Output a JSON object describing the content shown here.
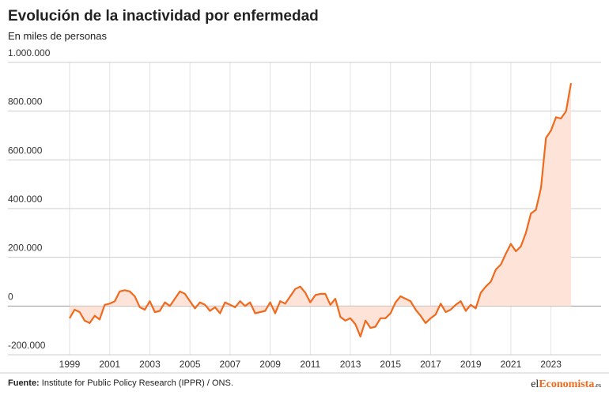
{
  "chart_data": {
    "type": "area-line",
    "title": "Evolución de la inactividad por enfermedad",
    "subtitle": "En miles de personas",
    "color": "#f06a1e",
    "fill_color": "#fde3d8",
    "grid": true,
    "xlim": [
      1999,
      2024
    ],
    "xticks": [
      1999,
      2001,
      2003,
      2005,
      2007,
      2009,
      2011,
      2013,
      2015,
      2017,
      2019,
      2021,
      2023
    ],
    "ylim": [
      -200000,
      1000000
    ],
    "yticks": [
      {
        "value": -200000,
        "label": "-200.000"
      },
      0,
      {
        "value": 200000,
        "label": "200.000"
      },
      {
        "value": 400000,
        "label": "400.000"
      },
      {
        "value": 600000,
        "label": "600.000"
      },
      {
        "value": 800000,
        "label": "800.000"
      },
      {
        "value": 1000000,
        "label": "1.000.000"
      }
    ],
    "x": [
      1999,
      1999.25,
      1999.5,
      1999.75,
      2000,
      2000.25,
      2000.5,
      2000.75,
      2001,
      2001.25,
      2001.5,
      2001.75,
      2002,
      2002.25,
      2002.5,
      2002.75,
      2003,
      2003.25,
      2003.5,
      2003.75,
      2004,
      2004.25,
      2004.5,
      2004.75,
      2005,
      2005.25,
      2005.5,
      2005.75,
      2006,
      2006.25,
      2006.5,
      2006.75,
      2007,
      2007.25,
      2007.5,
      2007.75,
      2008,
      2008.25,
      2008.5,
      2008.75,
      2009,
      2009.25,
      2009.5,
      2009.75,
      2010,
      2010.25,
      2010.5,
      2010.75,
      2011,
      2011.25,
      2011.5,
      2011.75,
      2012,
      2012.25,
      2012.5,
      2012.75,
      2013,
      2013.25,
      2013.5,
      2013.75,
      2014,
      2014.25,
      2014.5,
      2014.75,
      2015,
      2015.25,
      2015.5,
      2015.75,
      2016,
      2016.25,
      2016.5,
      2016.75,
      2017,
      2017.25,
      2017.5,
      2017.75,
      2018,
      2018.25,
      2018.5,
      2018.75,
      2019,
      2019.25,
      2019.5,
      2019.75,
      2020,
      2020.25,
      2020.5,
      2020.75,
      2021,
      2021.25,
      2021.5,
      2021.75,
      2022,
      2022.25,
      2022.5,
      2022.75,
      2023,
      2023.25,
      2023.5,
      2023.75,
      2024
    ],
    "values": [
      -50000,
      -15000,
      -25000,
      -60000,
      -70000,
      -40000,
      -55000,
      5000,
      10000,
      20000,
      60000,
      65000,
      60000,
      40000,
      -5000,
      -15000,
      20000,
      -25000,
      -20000,
      15000,
      0,
      30000,
      60000,
      50000,
      20000,
      -10000,
      15000,
      5000,
      -20000,
      -5000,
      -30000,
      15000,
      5000,
      -5000,
      20000,
      0,
      15000,
      -30000,
      -25000,
      -20000,
      15000,
      -30000,
      20000,
      10000,
      40000,
      70000,
      80000,
      55000,
      15000,
      45000,
      50000,
      50000,
      5000,
      30000,
      -45000,
      -60000,
      -50000,
      -75000,
      -125000,
      -60000,
      -90000,
      -85000,
      -50000,
      -50000,
      -30000,
      15000,
      40000,
      30000,
      20000,
      -15000,
      -40000,
      -70000,
      -50000,
      -35000,
      10000,
      -25000,
      -15000,
      5000,
      20000,
      -20000,
      5000,
      -10000,
      55000,
      80000,
      100000,
      150000,
      170000,
      215000,
      255000,
      225000,
      245000,
      300000,
      380000,
      395000,
      485000,
      690000,
      720000,
      775000,
      770000,
      800000,
      915000
    ]
  },
  "footer": {
    "source_label": "Fuente:",
    "source": " Institute for Public Policy Research (IPPR) / ONS.",
    "logo": [
      "el",
      "Economista",
      ".es"
    ]
  }
}
